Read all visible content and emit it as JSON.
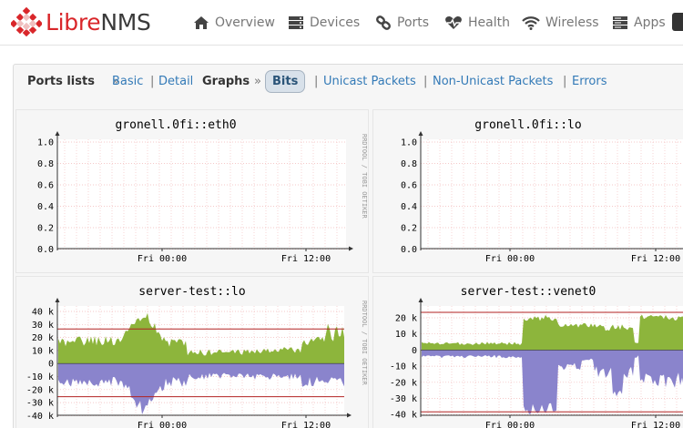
{
  "app": {
    "logo_part1": "Libre",
    "logo_part2": "NMS",
    "brand_color": "#d9262a"
  },
  "nav": {
    "items": [
      {
        "label": "Overview",
        "icon": "home-icon"
      },
      {
        "label": "Devices",
        "icon": "server-icon"
      },
      {
        "label": "Ports",
        "icon": "link-icon"
      },
      {
        "label": "Health",
        "icon": "heartbeat-icon"
      },
      {
        "label": "Wireless",
        "icon": "wifi-icon"
      },
      {
        "label": "Apps",
        "icon": "apps-icon"
      }
    ]
  },
  "subnav": {
    "ports_lists": "Ports lists",
    "sep_raquo": "»",
    "basic": "Basic",
    "pipe": "|",
    "detail": "Detail",
    "graphs": "Graphs",
    "bits": "Bits",
    "unicast": "Unicast Packets",
    "non_unicast": "Non-Unicast Packets",
    "errors": "Errors"
  },
  "graphs": [
    {
      "title": "gronell.0fi::eth0",
      "credit": "RRDTOOL / TOBI OETIKER",
      "y_ticks": [
        "1.0",
        "0.8",
        "0.6",
        "0.4",
        "0.2",
        "0.0"
      ],
      "x_ticks": [
        "Fri 00:00",
        "Fri 12:00"
      ]
    },
    {
      "title": "gronell.0fi::lo",
      "y_ticks": [
        "1.0",
        "0.8",
        "0.6",
        "0.4",
        "0.2",
        "0.0"
      ],
      "x_ticks": [
        "Fri 00:00",
        "Fri 12:00"
      ]
    },
    {
      "title": "server-test::lo",
      "credit": "RRDTOOL / TOBI OETIKER",
      "y_ticks": [
        "40 k",
        "30 k",
        "20 k",
        "10 k",
        "0",
        "-10 k",
        "-20 k",
        "-30 k",
        "-40 k"
      ],
      "x_ticks": [
        "Fri 00:00",
        "Fri 12:00"
      ]
    },
    {
      "title": "server-test::venet0",
      "y_ticks": [
        "20 k",
        "10 k",
        "0",
        "-10 k",
        "-20 k",
        "-30 k",
        "-40 k"
      ],
      "x_ticks": [
        "Fri 00:00",
        "Fri 12:00"
      ]
    }
  ],
  "colors": {
    "inbound": "#8db53c",
    "outbound": "#8a84cc",
    "threshold": "#b22222",
    "grid": "#f2b8b8"
  }
}
